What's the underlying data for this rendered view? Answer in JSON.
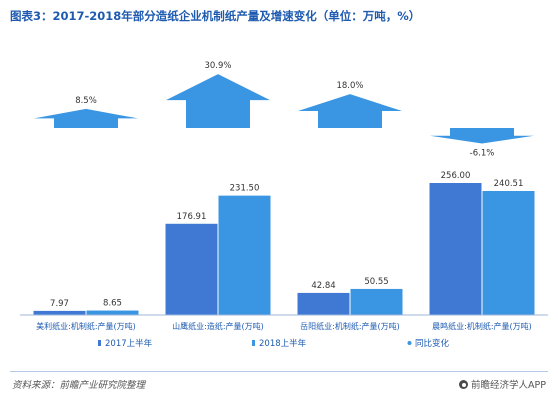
{
  "title": "图表3：2017-2018年部分造纸企业机制纸产量及增速变化（单位：万吨，%）",
  "colors": {
    "series_2017": "#3f79d3",
    "series_2018": "#3a95e2",
    "growth": "#3a95e2",
    "text": "#333333",
    "category_text": "#1e5bb0"
  },
  "chart_data": {
    "type": "bar",
    "categories": [
      "美利纸业:机制纸:产量(万吨)",
      "山鹰纸业:造纸:产量(万吨)",
      "岳阳纸业:机制纸:产量(万吨)",
      "晨鸣纸业:机制纸:产量(万吨)"
    ],
    "series": [
      {
        "name": "2017上半年",
        "values": [
          7.97,
          176.91,
          42.84,
          256.0
        ],
        "labels": [
          "7.97",
          "176.91",
          "42.84",
          "256.00"
        ]
      },
      {
        "name": "2018上半年",
        "values": [
          8.65,
          231.5,
          50.55,
          240.51
        ],
        "labels": [
          "8.65",
          "231.50",
          "50.55",
          "240.51"
        ]
      }
    ],
    "growth": {
      "name": "同比变化",
      "values": [
        8.5,
        30.9,
        18.0,
        -6.1
      ],
      "labels": [
        "8.5%",
        "30.9%",
        "18.0%",
        "-6.1%"
      ]
    },
    "ylim": [
      0,
      280
    ],
    "legend_position": "bottom"
  },
  "footer": {
    "source": "资料来源：前瞻产业研究院整理",
    "brand": "前瞻经济学人APP"
  }
}
